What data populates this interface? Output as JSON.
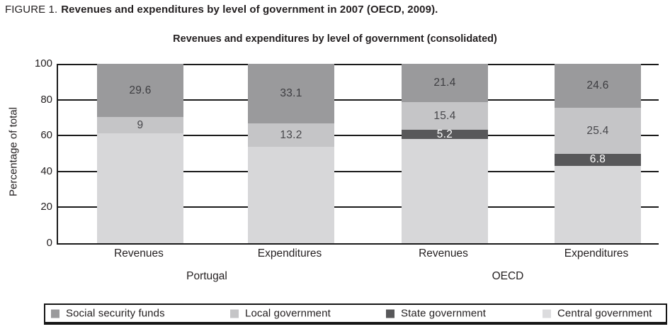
{
  "figure_title": {
    "prefix": "FIGURE 1.",
    "title": "Revenues and expenditures by level of government in 2007 (OECD, 2009)."
  },
  "chart_data": {
    "type": "bar",
    "stacked": true,
    "title": "Revenues and expenditures by level of government (consolidated)",
    "ylabel": "Percentage of total",
    "ylim": [
      0,
      100
    ],
    "yticks": [
      0,
      20,
      40,
      60,
      80,
      100
    ],
    "grid": "horizontal",
    "legend_position": "bottom",
    "categories": [
      "Revenues",
      "Expenditures",
      "Revenues",
      "Expenditures"
    ],
    "group_labels": [
      "Portugal",
      "OECD"
    ],
    "series": [
      {
        "name": "Central government",
        "color": "#d7d7d9",
        "values": [
          61.4,
          53.7,
          58.0,
          43.2
        ],
        "labels": [
          "",
          "",
          "",
          ""
        ],
        "label_color": "#47474b"
      },
      {
        "name": "State government",
        "color": "#58585a",
        "values": [
          0,
          0,
          5.2,
          6.8
        ],
        "labels": [
          "",
          "",
          "5.2",
          "6.8"
        ],
        "label_color": "#ffffff"
      },
      {
        "name": "Local government",
        "color": "#c5c5c7",
        "values": [
          9,
          13.2,
          15.4,
          25.4
        ],
        "labels": [
          "9",
          "13.2",
          "15.4",
          "25.4"
        ],
        "label_color": "#47474b"
      },
      {
        "name": "Social security funds",
        "color": "#9a9a9c",
        "values": [
          29.6,
          33.1,
          21.4,
          24.6
        ],
        "labels": [
          "29.6",
          "33.1",
          "21.4",
          "24.6"
        ],
        "label_color": "#3d3d41"
      }
    ]
  },
  "legend": {
    "items": [
      {
        "label": "Social security funds",
        "color": "#9a9a9c"
      },
      {
        "label": "Local government",
        "color": "#c5c5c7"
      },
      {
        "label": "State government",
        "color": "#58585a"
      },
      {
        "label": "Central government",
        "color": "#dcdcde"
      }
    ]
  }
}
